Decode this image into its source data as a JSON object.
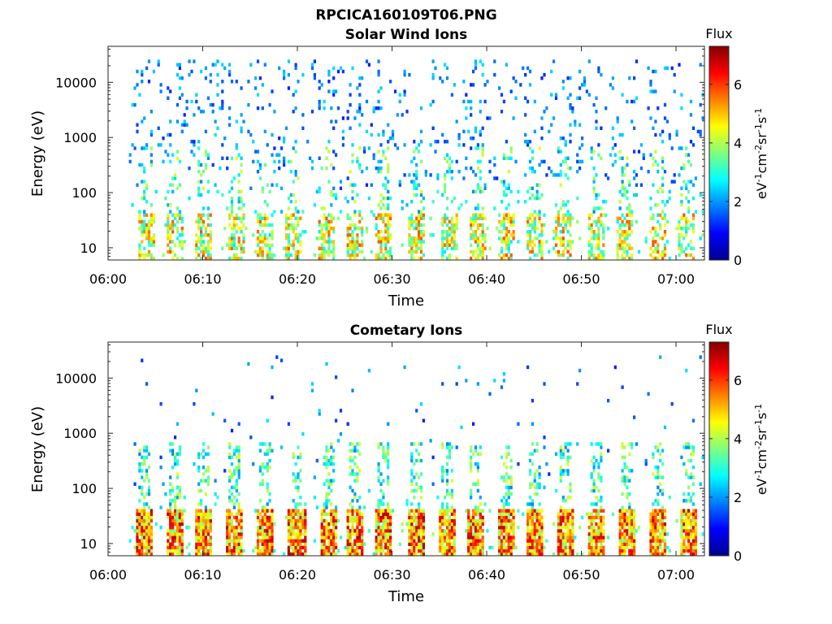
{
  "figure_title": "RPCICA160109T06.PNG",
  "chart_data": [
    {
      "type": "heatmap",
      "title": "Solar Wind Ions",
      "xlabel": "Time",
      "ylabel": "Energy (eV)",
      "x_ticks": [
        "06:00",
        "06:10",
        "06:20",
        "06:30",
        "06:40",
        "06:50",
        "07:00"
      ],
      "y_ticks": [
        "10",
        "100",
        "1000",
        "10000"
      ],
      "y_scale": "log",
      "ylim": [
        6,
        45000
      ],
      "xlim_minutes": [
        0,
        63
      ],
      "colorbar": {
        "title": "Flux",
        "label": "eV-1cm-2sr-1s-1",
        "ticks": [
          0,
          2,
          4,
          6
        ],
        "range": [
          0,
          7.3
        ],
        "colormap": "jet"
      },
      "grid": false,
      "dominant_pattern": "sparse blue/cyan points across 150-20000 eV; periodic cyan-yellow-orange bursts at 10-30 eV"
    },
    {
      "type": "heatmap",
      "title": "Cometary Ions",
      "xlabel": "Time",
      "ylabel": "Energy (eV)",
      "x_ticks": [
        "06:00",
        "06:10",
        "06:20",
        "06:30",
        "06:40",
        "06:50",
        "07:00"
      ],
      "y_ticks": [
        "10",
        "100",
        "1000",
        "10000"
      ],
      "y_scale": "log",
      "ylim": [
        6,
        45000
      ],
      "xlim_minutes": [
        0,
        63
      ],
      "colorbar": {
        "title": "Flux",
        "label": "eV-1cm-2sr-1s-1",
        "ticks": [
          0,
          2,
          4,
          6
        ],
        "range": [
          0,
          7.3
        ],
        "colormap": "jet"
      },
      "grid": false,
      "dominant_pattern": "periodic yellow-orange-red bursts at 7-40 eV roughly every 3 minutes, with sparse cyan/blue above 100 eV"
    }
  ]
}
